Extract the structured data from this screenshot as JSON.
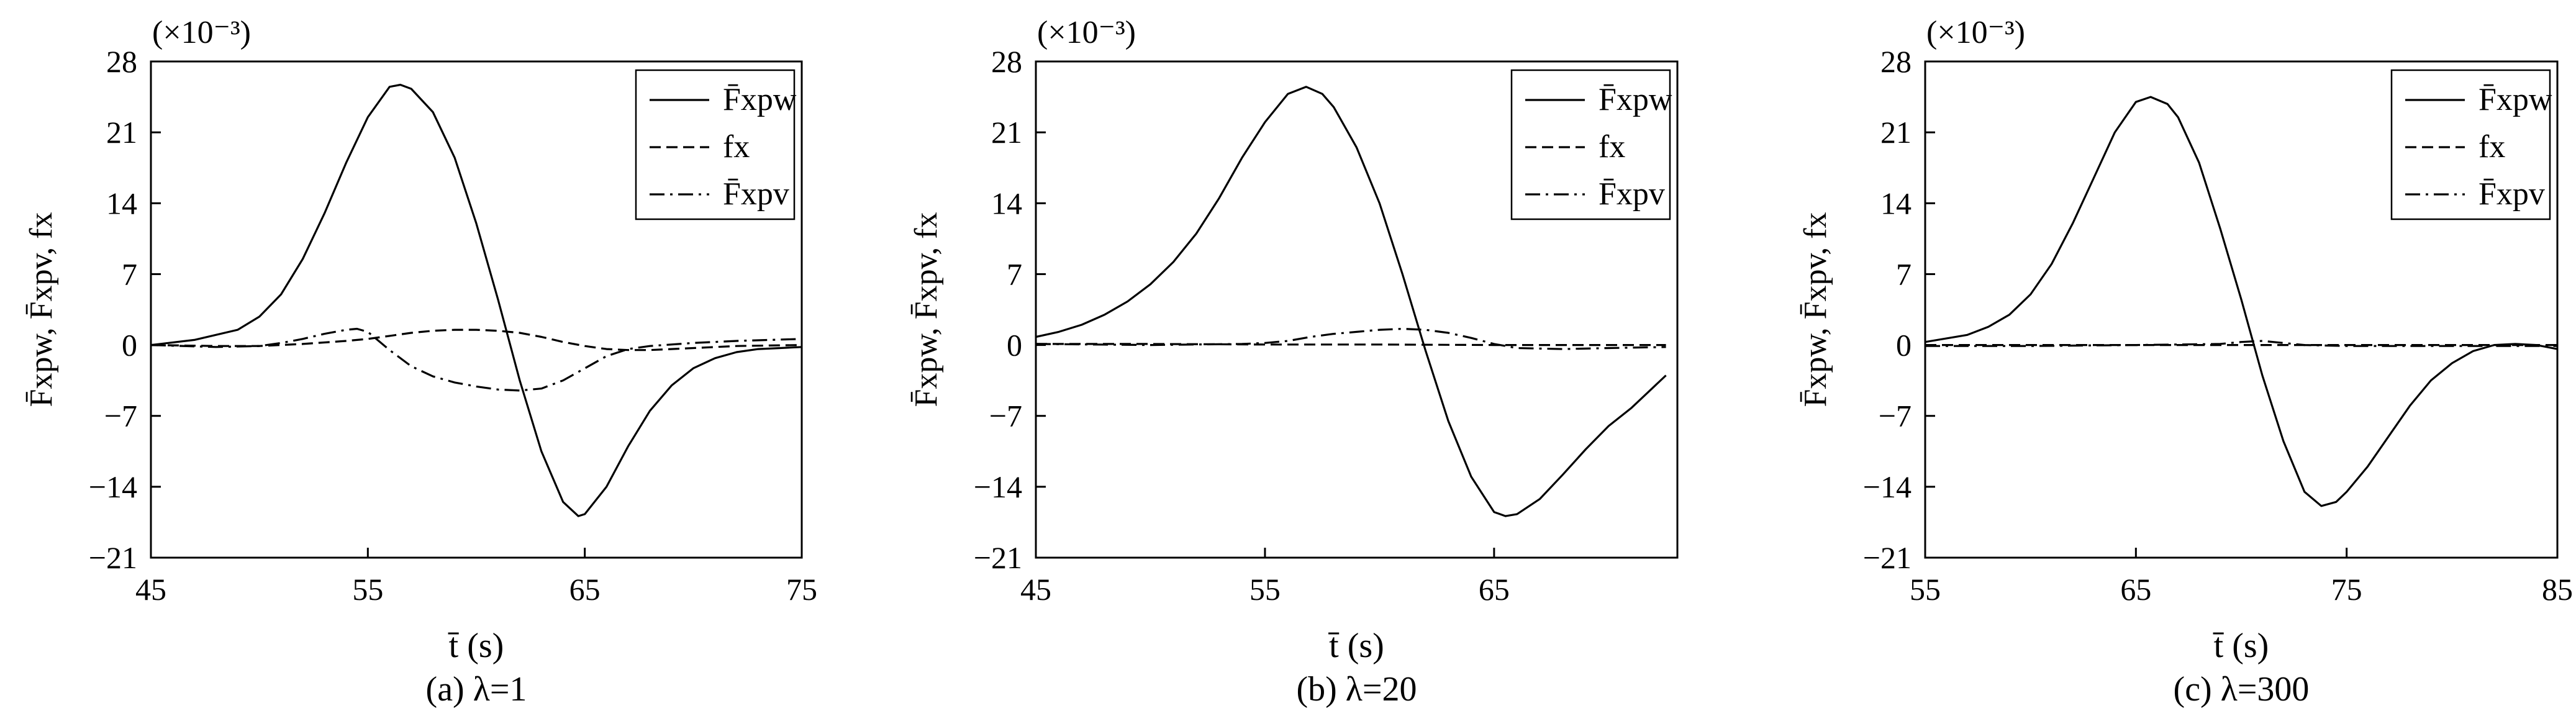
{
  "chart_data": [
    {
      "type": "line",
      "caption": "(a) λ=1",
      "xlabel": "t̄ (s)",
      "ylabel": "F̄xpw, F̄xpv, fx",
      "exponent": "(×10⁻³)",
      "xlim": [
        45,
        75
      ],
      "ylim": [
        -21,
        28
      ],
      "xticks": [
        "45",
        "55",
        "65",
        "75"
      ],
      "yticks": [
        "28",
        "21",
        "14",
        "7",
        "0",
        "−7",
        "−14",
        "−21"
      ],
      "legend_position": "top-right",
      "series": [
        {
          "name": "F̄xpw",
          "style": "solid",
          "x": [
            45,
            47,
            49,
            50,
            51,
            52,
            53,
            54,
            55,
            56,
            56.5,
            57,
            58,
            59,
            60,
            61,
            62,
            63,
            64,
            64.7,
            65,
            66,
            67,
            68,
            69,
            70,
            71,
            72,
            73,
            74,
            75
          ],
          "y": [
            0,
            0.5,
            1.5,
            2.8,
            5,
            8.5,
            13,
            18,
            22.5,
            25.5,
            25.7,
            25.3,
            23,
            18.5,
            12,
            4.5,
            -3.5,
            -10.5,
            -15.5,
            -16.9,
            -16.7,
            -14,
            -10,
            -6.5,
            -4,
            -2.3,
            -1.3,
            -0.7,
            -0.4,
            -0.3,
            -0.2
          ]
        },
        {
          "name": "fx",
          "style": "dashed",
          "x": [
            45,
            48,
            50,
            52,
            54,
            55,
            56,
            57,
            58,
            59,
            60,
            61,
            62,
            63,
            64,
            65,
            66,
            67,
            68,
            70,
            72,
            75
          ],
          "y": [
            0,
            -0.1,
            -0.1,
            0.1,
            0.4,
            0.6,
            0.9,
            1.2,
            1.4,
            1.5,
            1.5,
            1.4,
            1.2,
            0.8,
            0.3,
            -0.1,
            -0.4,
            -0.5,
            -0.5,
            -0.3,
            -0.1,
            0
          ]
        },
        {
          "name": "F̄xpv",
          "style": "dashdot",
          "x": [
            45,
            48,
            50,
            51,
            52,
            53,
            54,
            54.5,
            55,
            56,
            57,
            58,
            59,
            60,
            61,
            62,
            63,
            64,
            65,
            66,
            67,
            68,
            70,
            72,
            75
          ],
          "y": [
            0,
            -0.2,
            -0.1,
            0.2,
            0.6,
            1.1,
            1.5,
            1.6,
            1.3,
            -0.5,
            -2.1,
            -3.1,
            -3.7,
            -4.1,
            -4.4,
            -4.5,
            -4.3,
            -3.5,
            -2.3,
            -1.1,
            -0.4,
            -0.1,
            0.2,
            0.4,
            0.6
          ]
        }
      ]
    },
    {
      "type": "line",
      "caption": "(b) λ=20",
      "xlabel": "t̄ (s)",
      "ylabel": "F̄xpw, F̄xpv, fx",
      "exponent": "(×10⁻³)",
      "xlim": [
        45,
        73
      ],
      "ylim": [
        -21,
        28
      ],
      "xticks": [
        "45",
        "55",
        "65"
      ],
      "yticks": [
        "28",
        "21",
        "14",
        "7",
        "0",
        "−7",
        "−14",
        "−21"
      ],
      "legend_position": "top-right",
      "series": [
        {
          "name": "F̄xpw",
          "style": "solid",
          "x": [
            45,
            46,
            47,
            48,
            49,
            50,
            51,
            52,
            53,
            54,
            55,
            56,
            56.8,
            57.5,
            58,
            59,
            60,
            61,
            62,
            63,
            64,
            65,
            65.5,
            66,
            67,
            68,
            69,
            70,
            71,
            72.5
          ],
          "y": [
            0.8,
            1.3,
            2,
            3,
            4.3,
            6,
            8.2,
            11,
            14.5,
            18.5,
            22,
            24.8,
            25.5,
            24.8,
            23.5,
            19.5,
            14,
            7,
            -0.5,
            -7.5,
            -13,
            -16.5,
            -16.9,
            -16.7,
            -15.2,
            -12.8,
            -10.3,
            -8,
            -6.2,
            -3
          ]
        },
        {
          "name": "fx",
          "style": "dashed",
          "x": [
            45,
            50,
            55,
            60,
            65,
            70,
            72.5
          ],
          "y": [
            0.1,
            0.1,
            0.05,
            0.05,
            0,
            0,
            0
          ]
        },
        {
          "name": "F̄xpv",
          "style": "dashdot",
          "x": [
            45,
            50,
            54,
            55,
            56,
            57,
            58,
            59,
            60,
            61,
            62,
            63,
            64,
            65,
            66,
            68,
            70,
            72.5
          ],
          "y": [
            0.1,
            0,
            0.1,
            0.2,
            0.4,
            0.8,
            1.1,
            1.3,
            1.5,
            1.6,
            1.5,
            1.2,
            0.7,
            0.1,
            -0.3,
            -0.4,
            -0.3,
            -0.2
          ]
        }
      ]
    },
    {
      "type": "line",
      "caption": "(c) λ=300",
      "xlabel": "t̄ (s)",
      "ylabel": "F̄xpw, F̄xpv, fx",
      "exponent": "(×10⁻³)",
      "xlim": [
        55,
        85
      ],
      "ylim": [
        -21,
        28
      ],
      "xticks": [
        "55",
        "65",
        "75",
        "85"
      ],
      "yticks": [
        "28",
        "21",
        "14",
        "7",
        "0",
        "−7",
        "−14",
        "−21"
      ],
      "legend_position": "top-right",
      "series": [
        {
          "name": "F̄xpw",
          "style": "solid",
          "x": [
            55,
            57,
            58,
            59,
            60,
            61,
            62,
            63,
            64,
            65,
            65.7,
            66.5,
            67,
            68,
            69,
            70,
            71,
            72,
            73,
            73.8,
            74.5,
            75,
            76,
            77,
            78,
            79,
            80,
            81,
            82,
            83,
            84,
            85
          ],
          "y": [
            0.3,
            1,
            1.8,
            3,
            5,
            8,
            12,
            16.5,
            21,
            24,
            24.5,
            23.8,
            22.5,
            18,
            11.5,
            4.5,
            -3,
            -9.5,
            -14.5,
            -15.9,
            -15.5,
            -14.5,
            -12,
            -9,
            -6,
            -3.5,
            -1.8,
            -0.6,
            0,
            0.1,
            0,
            -0.4
          ]
        },
        {
          "name": "fx",
          "style": "dashed",
          "x": [
            55,
            60,
            65,
            70,
            75,
            80,
            85
          ],
          "y": [
            0,
            0,
            0,
            0,
            0,
            0,
            0
          ]
        },
        {
          "name": "F̄xpv",
          "style": "dashdot",
          "x": [
            55,
            60,
            65,
            69,
            70,
            71,
            72,
            73,
            75,
            80,
            85
          ],
          "y": [
            -0.1,
            -0.1,
            0,
            0.1,
            0.3,
            0.4,
            0.2,
            0,
            -0.1,
            -0.1,
            -0.1
          ]
        }
      ]
    }
  ]
}
